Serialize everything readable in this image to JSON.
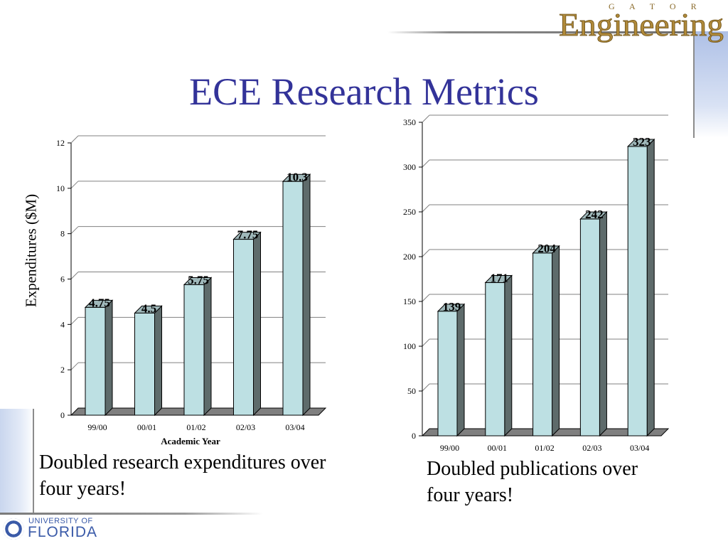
{
  "slide": {
    "title": "ECE Research Metrics"
  },
  "logos": {
    "top_right_small": "G A T O R",
    "top_right_main": "Engineering",
    "bottom_left_top": "UNIVERSITY OF",
    "bottom_left_main": "FLORIDA"
  },
  "captions": {
    "left": "Doubled research expenditures over four years!",
    "right": "Doubled publications over four years!"
  },
  "colors": {
    "bar_face": "#bde0e3",
    "bar_side": "#5e6b6b",
    "title": "#333399"
  },
  "chart_data": [
    {
      "type": "bar",
      "categories": [
        "99/00",
        "00/01",
        "01/02",
        "02/03",
        "03/04"
      ],
      "values": [
        4.75,
        4.5,
        5.75,
        7.75,
        10.3
      ],
      "data_labels": [
        "4.75",
        "4.5",
        "5.75",
        "7.75",
        "10.3"
      ],
      "ylabel": "Expenditures ($M)",
      "xlabel": "Academic Year",
      "ylim": [
        0,
        12
      ],
      "yticks": [
        0,
        2,
        4,
        6,
        8,
        10,
        12
      ],
      "ytick_labels": [
        "0",
        "2",
        "4",
        "6",
        "8",
        "10",
        "12"
      ],
      "grid": true,
      "style": "3d"
    },
    {
      "type": "bar",
      "categories": [
        "99/00",
        "00/01",
        "01/02",
        "02/03",
        "03/04"
      ],
      "values": [
        139,
        171,
        204,
        242,
        323
      ],
      "data_labels": [
        "139",
        "171",
        "204",
        "242",
        "323"
      ],
      "ylabel": "",
      "xlabel": "",
      "ylim": [
        0,
        350
      ],
      "yticks": [
        0,
        50,
        100,
        150,
        200,
        250,
        300,
        350
      ],
      "ytick_labels": [
        "0",
        "50",
        "100",
        "150",
        "200",
        "250",
        "300",
        "350"
      ],
      "grid": true,
      "style": "3d"
    }
  ]
}
